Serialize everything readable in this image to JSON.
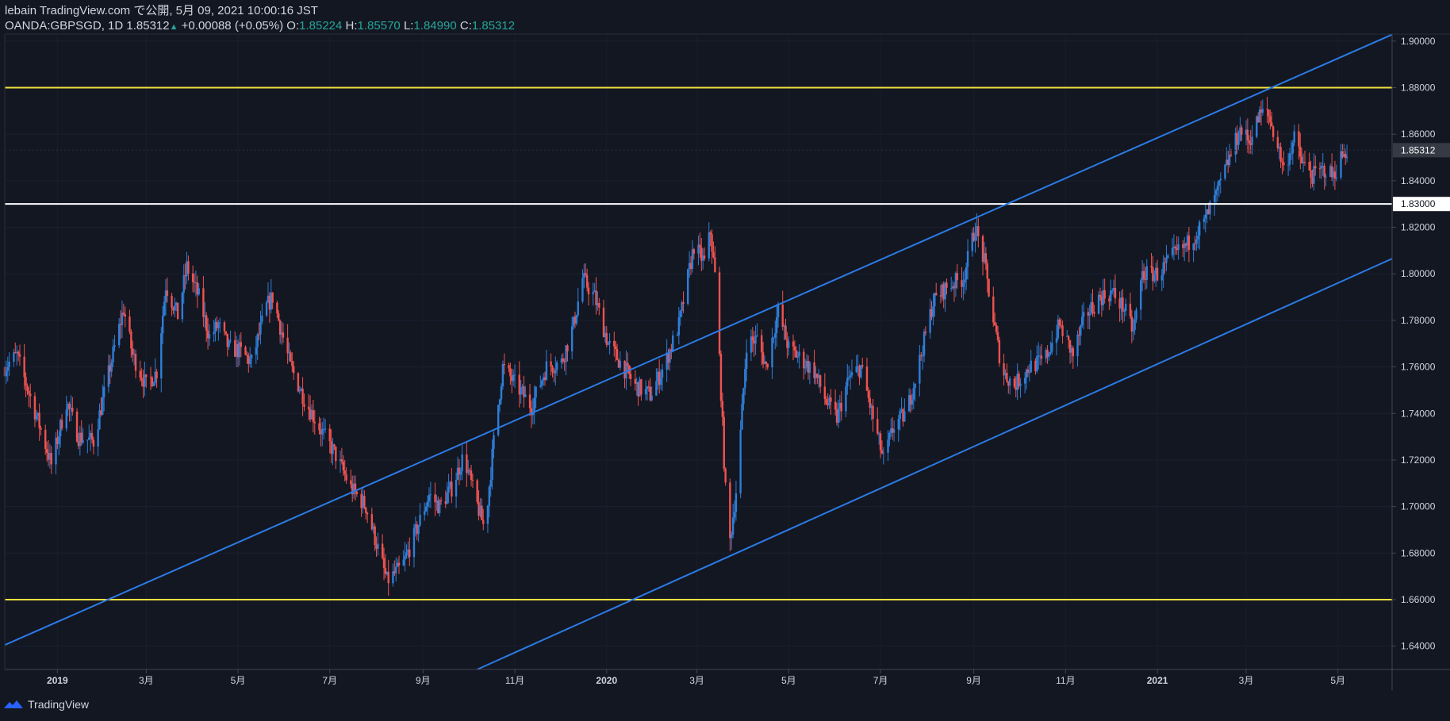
{
  "header": {
    "published_line": "lebain TradingView.com で公開, 5月 09, 2021 10:00:16 JST",
    "symbol": "OANDA:GBPSGD, 1D",
    "last": "1.85312",
    "change_arrow": "▲",
    "change": "+0.00088 (+0.05%)",
    "open_label": "O:",
    "open": "1.85224",
    "high_label": "H:",
    "high": "1.85570",
    "low_label": "L:",
    "low": "1.84990",
    "close_label": "C:",
    "close": "1.85312"
  },
  "footer": {
    "brand": "TradingView"
  },
  "colors": {
    "background": "#131722",
    "up": "#2f7ed8",
    "down": "#ef5350",
    "support_resistance": "#f0e040",
    "level_white": "#ffffff",
    "channel": "#2c7be5",
    "text": "#d1d4dc",
    "green": "#26a69a"
  },
  "chart_data": {
    "type": "candlestick",
    "title": "OANDA:GBPSGD, 1D",
    "ylim": [
      1.63,
      1.903
    ],
    "y_ticks": [
      1.64,
      1.66,
      1.68,
      1.7,
      1.72,
      1.74,
      1.76,
      1.78,
      1.8,
      1.82,
      1.84,
      1.86,
      1.88,
      1.9
    ],
    "x_ticks": [
      {
        "label": "2019",
        "date": "2019-01-01"
      },
      {
        "label": "3月",
        "date": "2019-03-01"
      },
      {
        "label": "5月",
        "date": "2019-05-01"
      },
      {
        "label": "7月",
        "date": "2019-07-01"
      },
      {
        "label": "9月",
        "date": "2019-09-01"
      },
      {
        "label": "11月",
        "date": "2019-11-01"
      },
      {
        "label": "2020",
        "date": "2020-01-01"
      },
      {
        "label": "3月",
        "date": "2020-03-01"
      },
      {
        "label": "5月",
        "date": "2020-05-01"
      },
      {
        "label": "7月",
        "date": "2020-07-01"
      },
      {
        "label": "9月",
        "date": "2020-09-01"
      },
      {
        "label": "11月",
        "date": "2020-11-01"
      },
      {
        "label": "2021",
        "date": "2021-01-01"
      },
      {
        "label": "3月",
        "date": "2021-03-01"
      },
      {
        "label": "5月",
        "date": "2021-05-01"
      }
    ],
    "x_range": [
      "2018-11-27",
      "2021-06-06"
    ],
    "horizontal_levels": [
      {
        "name": "resistance",
        "price": 1.88,
        "color": "#f0e040",
        "label": "1.88000"
      },
      {
        "name": "level",
        "price": 1.83,
        "color": "#ffffff",
        "label": "1.83000"
      },
      {
        "name": "support",
        "price": 1.66,
        "color": "#f0e040",
        "label": "1.66000"
      }
    ],
    "last_price": {
      "price": 1.85312,
      "label": "1.85312"
    },
    "trendlines": [
      {
        "name": "upper-channel",
        "start": {
          "date": "2018-11-27",
          "price": 1.6405
        },
        "end": {
          "date": "2021-06-06",
          "price": 1.9028
        }
      },
      {
        "name": "lower-channel",
        "start": {
          "date": "2019-10-07",
          "price": 1.63
        },
        "end": {
          "date": "2021-06-06",
          "price": 1.8065
        }
      }
    ],
    "price_path": [
      [
        "2018-11-27",
        1.76
      ],
      [
        "2018-12-05",
        1.765
      ],
      [
        "2018-12-20",
        1.735
      ],
      [
        "2018-12-28",
        1.718
      ],
      [
        "2019-01-07",
        1.745
      ],
      [
        "2019-01-15",
        1.73
      ],
      [
        "2019-01-25",
        1.728
      ],
      [
        "2019-02-05",
        1.76
      ],
      [
        "2019-02-14",
        1.785
      ],
      [
        "2019-02-20",
        1.765
      ],
      [
        "2019-03-01",
        1.752
      ],
      [
        "2019-03-08",
        1.758
      ],
      [
        "2019-03-14",
        1.795
      ],
      [
        "2019-03-22",
        1.782
      ],
      [
        "2019-03-28",
        1.803
      ],
      [
        "2019-04-05",
        1.79
      ],
      [
        "2019-04-12",
        1.773
      ],
      [
        "2019-04-18",
        1.778
      ],
      [
        "2019-04-25",
        1.768
      ],
      [
        "2019-05-02",
        1.767
      ],
      [
        "2019-05-10",
        1.762
      ],
      [
        "2019-05-20",
        1.786
      ],
      [
        "2019-05-24",
        1.79
      ],
      [
        "2019-06-05",
        1.76
      ],
      [
        "2019-06-15",
        1.745
      ],
      [
        "2019-06-25",
        1.733
      ],
      [
        "2019-07-05",
        1.722
      ],
      [
        "2019-07-15",
        1.708
      ],
      [
        "2019-07-25",
        1.7
      ],
      [
        "2019-08-02",
        1.682
      ],
      [
        "2019-08-08",
        1.668
      ],
      [
        "2019-08-18",
        1.674
      ],
      [
        "2019-08-26",
        1.687
      ],
      [
        "2019-09-05",
        1.705
      ],
      [
        "2019-09-12",
        1.7
      ],
      [
        "2019-09-20",
        1.708
      ],
      [
        "2019-09-28",
        1.722
      ],
      [
        "2019-10-05",
        1.705
      ],
      [
        "2019-10-12",
        1.69
      ],
      [
        "2019-10-18",
        1.728
      ],
      [
        "2019-10-24",
        1.76
      ],
      [
        "2019-11-02",
        1.752
      ],
      [
        "2019-11-12",
        1.743
      ],
      [
        "2019-11-22",
        1.76
      ],
      [
        "2019-12-02",
        1.762
      ],
      [
        "2019-12-10",
        1.778
      ],
      [
        "2019-12-16",
        1.798
      ],
      [
        "2019-12-24",
        1.79
      ],
      [
        "2020-01-02",
        1.77
      ],
      [
        "2020-01-10",
        1.762
      ],
      [
        "2020-01-20",
        1.752
      ],
      [
        "2020-01-30",
        1.748
      ],
      [
        "2020-02-08",
        1.76
      ],
      [
        "2020-02-18",
        1.778
      ],
      [
        "2020-02-28",
        1.812
      ],
      [
        "2020-03-06",
        1.805
      ],
      [
        "2020-03-10",
        1.818
      ],
      [
        "2020-03-14",
        1.793
      ],
      [
        "2020-03-19",
        1.72
      ],
      [
        "2020-03-22",
        1.68
      ],
      [
        "2020-03-28",
        1.712
      ],
      [
        "2020-04-03",
        1.77
      ],
      [
        "2020-04-10",
        1.772
      ],
      [
        "2020-04-16",
        1.76
      ],
      [
        "2020-04-24",
        1.784
      ],
      [
        "2020-05-01",
        1.768
      ],
      [
        "2020-05-10",
        1.763
      ],
      [
        "2020-05-18",
        1.758
      ],
      [
        "2020-05-26",
        1.745
      ],
      [
        "2020-06-02",
        1.738
      ],
      [
        "2020-06-10",
        1.755
      ],
      [
        "2020-06-18",
        1.76
      ],
      [
        "2020-06-26",
        1.738
      ],
      [
        "2020-07-03",
        1.72
      ],
      [
        "2020-07-10",
        1.735
      ],
      [
        "2020-07-18",
        1.74
      ],
      [
        "2020-07-26",
        1.76
      ],
      [
        "2020-08-05",
        1.788
      ],
      [
        "2020-08-15",
        1.795
      ],
      [
        "2020-08-25",
        1.798
      ],
      [
        "2020-09-02",
        1.82
      ],
      [
        "2020-09-08",
        1.805
      ],
      [
        "2020-09-14",
        1.78
      ],
      [
        "2020-09-20",
        1.758
      ],
      [
        "2020-09-28",
        1.752
      ],
      [
        "2020-10-08",
        1.76
      ],
      [
        "2020-10-18",
        1.763
      ],
      [
        "2020-10-28",
        1.778
      ],
      [
        "2020-11-06",
        1.765
      ],
      [
        "2020-11-14",
        1.782
      ],
      [
        "2020-11-24",
        1.79
      ],
      [
        "2020-12-02",
        1.792
      ],
      [
        "2020-12-10",
        1.785
      ],
      [
        "2020-12-16",
        1.775
      ],
      [
        "2020-12-22",
        1.8
      ],
      [
        "2021-01-02",
        1.8
      ],
      [
        "2021-01-12",
        1.808
      ],
      [
        "2021-01-20",
        1.812
      ],
      [
        "2021-02-01",
        1.822
      ],
      [
        "2021-02-10",
        1.835
      ],
      [
        "2021-02-18",
        1.85
      ],
      [
        "2021-02-25",
        1.862
      ],
      [
        "2021-03-03",
        1.857
      ],
      [
        "2021-03-10",
        1.868
      ],
      [
        "2021-03-15",
        1.87
      ],
      [
        "2021-03-22",
        1.855
      ],
      [
        "2021-03-26",
        1.845
      ],
      [
        "2021-04-02",
        1.858
      ],
      [
        "2021-04-07",
        1.848
      ],
      [
        "2021-04-14",
        1.842
      ],
      [
        "2021-04-22",
        1.845
      ],
      [
        "2021-04-28",
        1.842
      ],
      [
        "2021-05-03",
        1.85
      ],
      [
        "2021-05-07",
        1.8531
      ]
    ]
  }
}
